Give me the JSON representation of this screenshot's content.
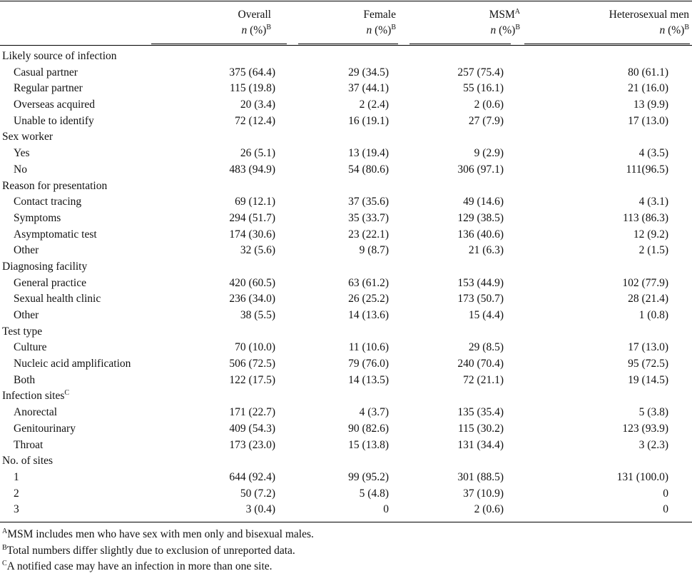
{
  "columns": [
    {
      "label": "Overall",
      "sub": "n",
      "pct": " (%)",
      "sup": "",
      "sup2": "B"
    },
    {
      "label": "Female",
      "sub": "n",
      "pct": " (%)",
      "sup": "",
      "sup2": "B"
    },
    {
      "label": "MSM",
      "sub": "n",
      "pct": " (%)",
      "sup": "A",
      "sup2": "B"
    },
    {
      "label": "Heterosexual men",
      "sub": "n",
      "pct": " (%)",
      "sup": "",
      "sup2": "B"
    }
  ],
  "rows": [
    {
      "type": "section",
      "label": "Likely source of infection"
    },
    {
      "type": "data",
      "label": "Casual partner",
      "values": [
        "375 (64.4)",
        "29 (34.5)",
        "257 (75.4)",
        "80 (61.1)"
      ]
    },
    {
      "type": "data",
      "label": "Regular partner",
      "values": [
        "115 (19.8)",
        "37 (44.1)",
        "55 (16.1)",
        "21 (16.0)"
      ]
    },
    {
      "type": "data",
      "label": "Overseas acquired",
      "values": [
        "20 (3.4)",
        "2 (2.4)",
        "2 (0.6)",
        "13 (9.9)"
      ]
    },
    {
      "type": "data",
      "label": "Unable to identify",
      "values": [
        "72 (12.4)",
        "16 (19.1)",
        "27 (7.9)",
        "17 (13.0)"
      ]
    },
    {
      "type": "section",
      "label": "Sex worker"
    },
    {
      "type": "data",
      "label": "Yes",
      "values": [
        "26 (5.1)",
        "13 (19.4)",
        "9 (2.9)",
        "4 (3.5)"
      ]
    },
    {
      "type": "data",
      "label": "No",
      "values": [
        "483 (94.9)",
        "54 (80.6)",
        "306 (97.1)",
        "111(96.5)"
      ]
    },
    {
      "type": "section",
      "label": "Reason for presentation"
    },
    {
      "type": "data",
      "label": "Contact tracing",
      "values": [
        "69 (12.1)",
        "37 (35.6)",
        "49 (14.6)",
        "4 (3.1)"
      ]
    },
    {
      "type": "data",
      "label": "Symptoms",
      "values": [
        "294 (51.7)",
        "35 (33.7)",
        "129 (38.5)",
        "113 (86.3)"
      ]
    },
    {
      "type": "data",
      "label": "Asymptomatic test",
      "values": [
        "174 (30.6)",
        "23 (22.1)",
        "136 (40.6)",
        "12 (9.2)"
      ]
    },
    {
      "type": "data",
      "label": "Other",
      "values": [
        "32 (5.6)",
        "9 (8.7)",
        "21 (6.3)",
        "2 (1.5)"
      ]
    },
    {
      "type": "section",
      "label": "Diagnosing facility"
    },
    {
      "type": "data",
      "label": "General practice",
      "values": [
        "420 (60.5)",
        "63 (61.2)",
        "153 (44.9)",
        "102 (77.9)"
      ]
    },
    {
      "type": "data",
      "label": "Sexual health clinic",
      "values": [
        "236 (34.0)",
        "26 (25.2)",
        "173 (50.7)",
        "28 (21.4)"
      ]
    },
    {
      "type": "data",
      "label": "Other",
      "values": [
        "38 (5.5)",
        "14 (13.6)",
        "15 (4.4)",
        "1 (0.8)"
      ]
    },
    {
      "type": "section",
      "label": "Test type"
    },
    {
      "type": "data",
      "label": "Culture",
      "values": [
        "70 (10.0)",
        "11 (10.6)",
        "29 (8.5)",
        "17 (13.0)"
      ]
    },
    {
      "type": "data",
      "label": "Nucleic acid amplification",
      "values": [
        "506 (72.5)",
        "79 (76.0)",
        "240 (70.4)",
        "95 (72.5)"
      ]
    },
    {
      "type": "data",
      "label": "Both",
      "values": [
        "122 (17.5)",
        "14 (13.5)",
        "72 (21.1)",
        "19 (14.5)"
      ]
    },
    {
      "type": "section",
      "label": "Infection sites",
      "sup": "C"
    },
    {
      "type": "data",
      "label": "Anorectal",
      "values": [
        "171 (22.7)",
        "4 (3.7)",
        "135 (35.4)",
        "5 (3.8)"
      ]
    },
    {
      "type": "data",
      "label": "Genitourinary",
      "values": [
        "409 (54.3)",
        "90 (82.6)",
        "115 (30.2)",
        "123 (93.9)"
      ]
    },
    {
      "type": "data",
      "label": "Throat",
      "values": [
        "173 (23.0)",
        "15 (13.8)",
        "131 (34.4)",
        "3 (2.3)"
      ]
    },
    {
      "type": "section",
      "label": "No. of sites"
    },
    {
      "type": "data",
      "label": "1",
      "values": [
        "644 (92.4)",
        "99 (95.2)",
        "301 (88.5)",
        "131 (100.0)"
      ]
    },
    {
      "type": "data",
      "label": "2",
      "values": [
        "50 (7.2)",
        "5 (4.8)",
        "37 (10.9)",
        "0"
      ]
    },
    {
      "type": "data",
      "label": "3",
      "values": [
        "3 (0.4)",
        "0",
        "2 (0.6)",
        "0"
      ]
    }
  ],
  "footnotes": [
    {
      "mark": "A",
      "text": "MSM includes men who have sex with men only and bisexual males."
    },
    {
      "mark": "B",
      "text": "Total numbers differ slightly due to exclusion of unreported data."
    },
    {
      "mark": "C",
      "text": "A notified case may have an infection in more than one site."
    }
  ]
}
